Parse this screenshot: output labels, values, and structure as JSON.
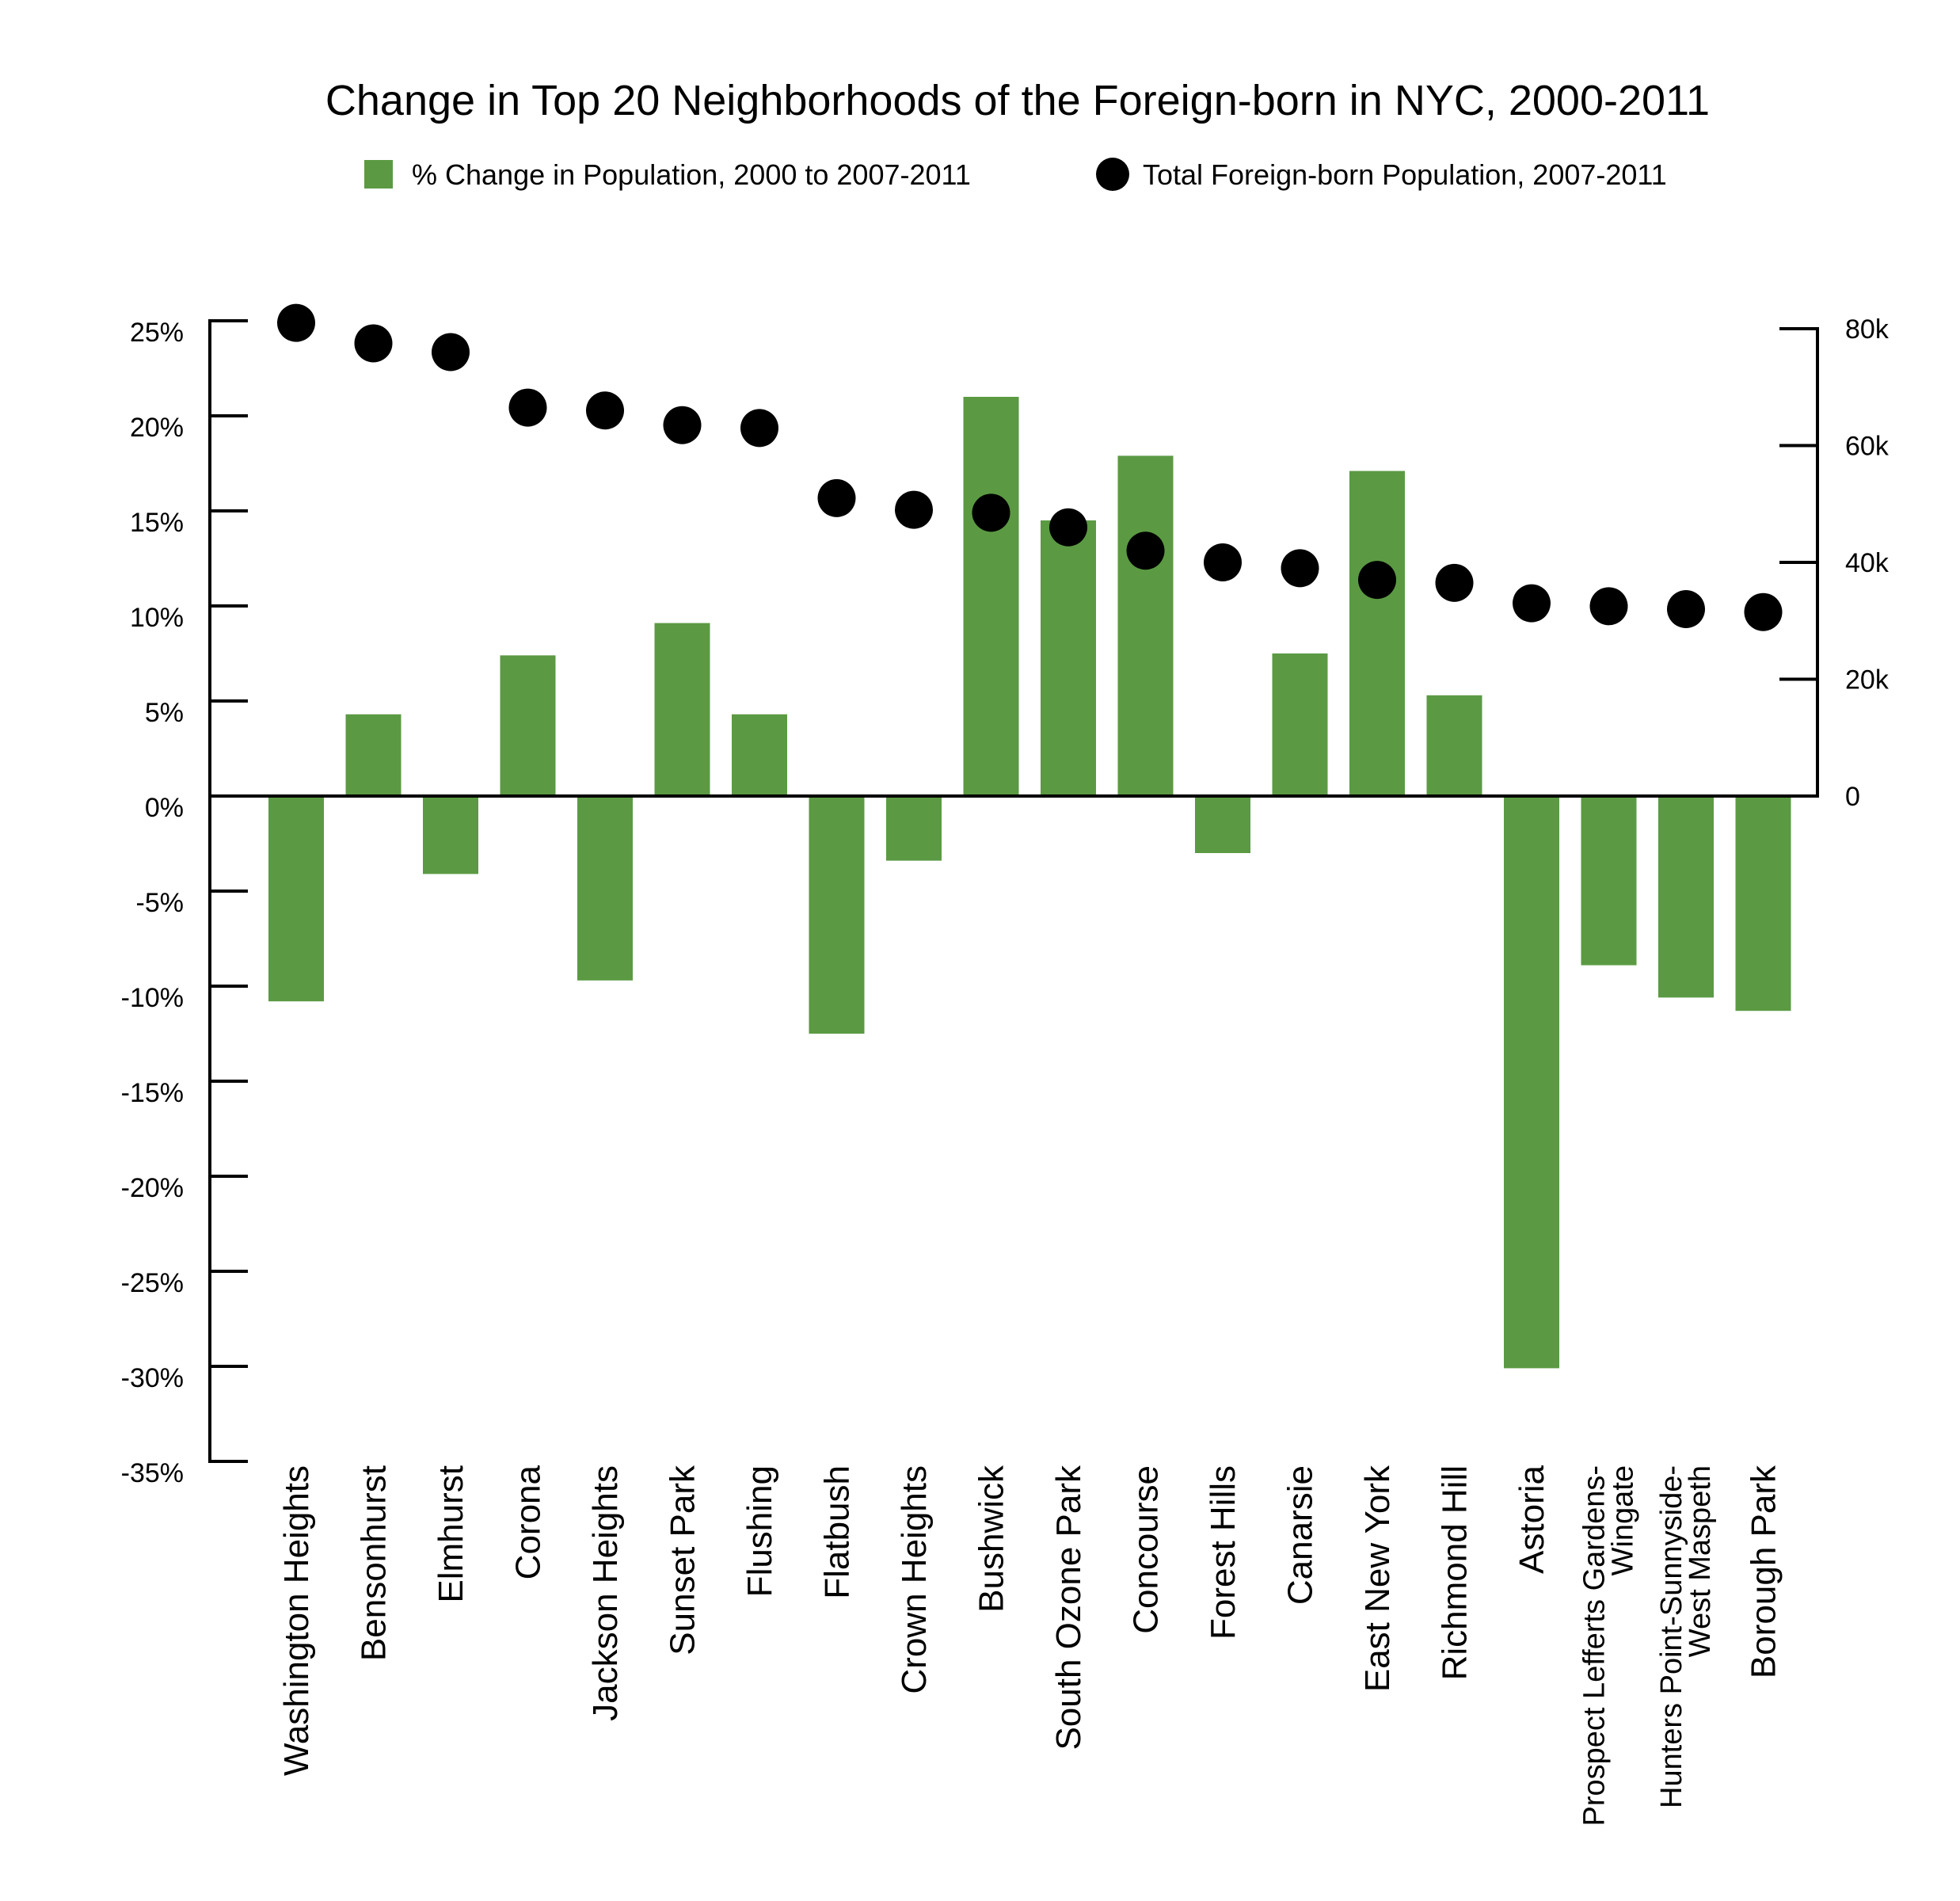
{
  "chart_data": {
    "type": "bar",
    "title": "Change in Top 20 Neighborhoods of the Foreign-born in NYC, 2000-2011",
    "colors": {
      "bar": "#5b9a43",
      "dot": "#000000"
    },
    "legend": {
      "placement": "top-center",
      "items": [
        {
          "label": "% Change in Population, 2000 to 2007-2011",
          "marker": "square"
        },
        {
          "label": "Total Foreign-born Population, 2007-2011",
          "marker": "circle"
        }
      ]
    },
    "categories": [
      [
        "Washington Heights"
      ],
      [
        "Bensonhurst"
      ],
      [
        "Elmhurst"
      ],
      [
        "Corona"
      ],
      [
        "Jackson Heights"
      ],
      [
        "Sunset Park"
      ],
      [
        "Flushing"
      ],
      [
        "Flatbush"
      ],
      [
        "Crown Heights"
      ],
      [
        "Bushwick"
      ],
      [
        "South Ozone Park"
      ],
      [
        "Concourse"
      ],
      [
        "Forest Hills"
      ],
      [
        "Canarsie"
      ],
      [
        "East New York"
      ],
      [
        "Richmond Hill"
      ],
      [
        "Astoria"
      ],
      [
        "Prospect Lefferts Gardens-",
        "Wingate"
      ],
      [
        "Hunters Point-Sunnyside-",
        "West Maspeth"
      ],
      [
        "Borough Park"
      ]
    ],
    "series": [
      {
        "type": "bar",
        "axis": "left",
        "values": [
          -10.8,
          4.3,
          -4.1,
          7.4,
          -9.7,
          9.1,
          4.3,
          -12.5,
          -3.4,
          21.0,
          14.5,
          17.9,
          -3.0,
          7.5,
          17.1,
          5.3,
          -30.1,
          -8.9,
          -10.6,
          -11.3
        ]
      },
      {
        "type": "scatter",
        "axis": "right",
        "values": [
          81000,
          77500,
          76000,
          66500,
          66000,
          63500,
          63000,
          51000,
          49000,
          48500,
          46000,
          42000,
          40000,
          39000,
          37000,
          36500,
          33000,
          32500,
          32000,
          31500
        ]
      }
    ],
    "y_left": {
      "min": -35,
      "max": 25,
      "step": 5,
      "ticks": [
        "25%",
        "20%",
        "15%",
        "10%",
        "5%",
        "0%",
        "-5%",
        "-10%",
        "-15%",
        "-20%",
        "-25%",
        "-30%",
        "-35%"
      ]
    },
    "y_right": {
      "min": 0,
      "max": 80000,
      "step": 20000,
      "ticks": [
        "80k",
        "60k",
        "40k",
        "20k",
        "0"
      ]
    },
    "grid": false
  }
}
